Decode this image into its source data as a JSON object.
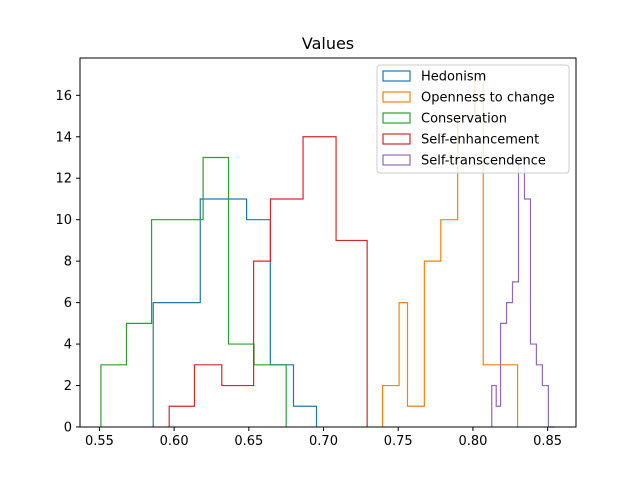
{
  "chart_data": {
    "type": "histogram",
    "title": "Values",
    "xlabel": "",
    "ylabel": "",
    "xlim": [
      0.537,
      0.869
    ],
    "ylim": [
      0,
      17.8
    ],
    "xticks": [
      0.55,
      0.6,
      0.65,
      0.7,
      0.75,
      0.8,
      0.85
    ],
    "xtick_labels": [
      "0.55",
      "0.60",
      "0.65",
      "0.70",
      "0.75",
      "0.80",
      "0.85"
    ],
    "yticks": [
      0,
      2,
      4,
      6,
      8,
      10,
      12,
      14,
      16
    ],
    "ytick_labels": [
      "0",
      "2",
      "4",
      "6",
      "8",
      "10",
      "12",
      "14",
      "16"
    ],
    "grid": false,
    "legend_position": "top-right",
    "series": [
      {
        "name": "Hedonism",
        "color": "#1f77b4",
        "edges": [
          0.586,
          0.5877,
          0.6175,
          0.6212,
          0.6485,
          0.6644,
          0.6799,
          0.6953
        ],
        "counts": [
          6,
          6,
          11,
          11,
          10,
          3,
          1
        ]
      },
      {
        "name": "Openness to change",
        "color": "#ff7f0e",
        "edges": [
          0.7395,
          0.7506,
          0.7562,
          0.7675,
          0.7785,
          0.7898,
          0.8013,
          0.8069,
          0.8153,
          0.8192,
          0.8299
        ],
        "counts": [
          2,
          6,
          1,
          8,
          10,
          15,
          17,
          3,
          3,
          3
        ]
      },
      {
        "name": "Conservation",
        "color": "#2ca02c",
        "edges": [
          0.551,
          0.5681,
          0.5849,
          0.6194,
          0.6364,
          0.6535,
          0.6744,
          0.675
        ],
        "counts": [
          3,
          5,
          10,
          13,
          4,
          3,
          3
        ]
      },
      {
        "name": "Self-enhancement",
        "color": "#d62728",
        "edges": [
          0.5967,
          0.6136,
          0.6319,
          0.6532,
          0.6645,
          0.6863,
          0.7084,
          0.7292
        ],
        "counts": [
          1,
          3,
          2,
          8,
          11,
          14,
          9
        ]
      },
      {
        "name": "Self-transcendence",
        "color": "#9467bd",
        "edges": [
          0.8126,
          0.8156,
          0.8185,
          0.8225,
          0.8265,
          0.8305,
          0.8345,
          0.8385,
          0.8425,
          0.8465,
          0.8505,
          0.8545
        ],
        "counts": [
          2,
          1,
          5,
          6,
          7,
          13,
          11,
          4,
          3,
          2,
          0
        ]
      }
    ]
  }
}
